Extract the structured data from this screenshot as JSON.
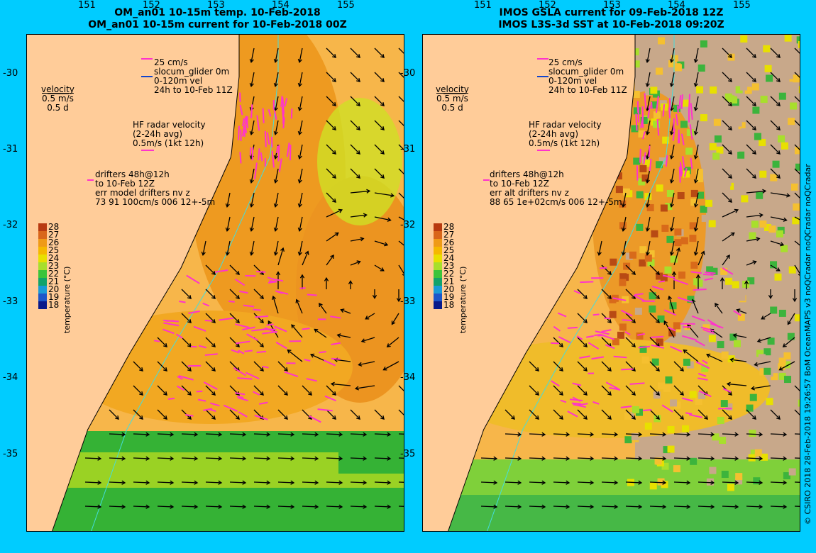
{
  "panels": [
    {
      "title_line1": "OM_an01 10-15m temp. 10-Feb-2018",
      "title_line2": "OM_an01 10-15m current for 10-Feb-2018 00Z",
      "legend_top": [
        "25 cm/s",
        "slocum_glider 0m",
        "0-120m vel",
        "24h to 10-Feb 11Z"
      ],
      "velocity": [
        "velocity",
        "0.5 m/s",
        "0.5 d"
      ],
      "hf_radar": [
        "HF radar velocity",
        "(2-24h avg)",
        "0.5m/s (1kt 12h)"
      ],
      "drifters": [
        "drifters 48h@12h",
        "to 10-Feb 12Z",
        "err model drifters nv z",
        "73 91 100cm/s 006 12+-5m"
      ],
      "style": "model"
    },
    {
      "title_line1": "IMOS GSLA current for 09-Feb-2018 12Z",
      "title_line2": "IMOS L3S-3d SST at 10-Feb-2018 09:20Z",
      "legend_top": [
        "25 cm/s",
        "slocum_glider 0m",
        "0-120m vel",
        "24h to 10-Feb 11Z"
      ],
      "velocity": [
        "velocity",
        "0.5 m/s",
        "0.5 d"
      ],
      "hf_radar": [
        "HF radar velocity",
        "(2-24h avg)",
        "0.5m/s (1kt 12h)"
      ],
      "drifters": [
        "drifters 48h@12h",
        "to 10-Feb 12Z",
        "err alt drifters nv z",
        "88 65 1e+02cm/s 006 12+-5m"
      ],
      "style": "satellite"
    }
  ],
  "y_ticks": [
    "-30",
    "-31",
    "-32",
    "-33",
    "-34",
    "-35"
  ],
  "x_ticks": [
    "151",
    "152",
    "153",
    "154",
    "155"
  ],
  "colorbar": {
    "title": "temperature (°C)",
    "ticks": [
      "28",
      "27",
      "26",
      "25",
      "24",
      "23",
      "22",
      "21",
      "20",
      "19",
      "18"
    ],
    "colors": [
      "#b83a10",
      "#d9661a",
      "#ef9a17",
      "#f5b800",
      "#e8e000",
      "#a8df2c",
      "#3bc43b",
      "#12a36a",
      "#1a9bd6",
      "#1c56c9",
      "#0a1a8a"
    ]
  },
  "side_text": "© CSIRO 2018  28-Feb-2018 19:26:57 BoM OceanMAPS v3 noQCradar noQCradar noQCradar",
  "colors": {
    "background": "#00ccff",
    "land": "#ffcc99",
    "warm": "#f0a020",
    "mid": "#f5c030",
    "cool": "#3ab43a",
    "glider_arrow": "#ff33cc",
    "current_arrow": "#000000"
  }
}
